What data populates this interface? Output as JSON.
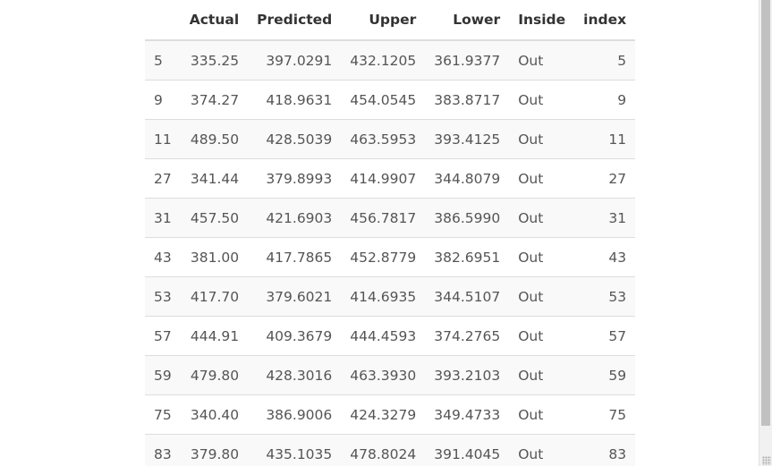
{
  "table": {
    "columns": [
      "",
      "Actual",
      "Predicted",
      "Upper",
      "Lower",
      "Inside",
      "index"
    ],
    "rows": [
      [
        "5",
        "335.25",
        "397.0291",
        "432.1205",
        "361.9377",
        "Out",
        "5"
      ],
      [
        "9",
        "374.27",
        "418.9631",
        "454.0545",
        "383.8717",
        "Out",
        "9"
      ],
      [
        "11",
        "489.50",
        "428.5039",
        "463.5953",
        "393.4125",
        "Out",
        "11"
      ],
      [
        "27",
        "341.44",
        "379.8993",
        "414.9907",
        "344.8079",
        "Out",
        "27"
      ],
      [
        "31",
        "457.50",
        "421.6903",
        "456.7817",
        "386.5990",
        "Out",
        "31"
      ],
      [
        "43",
        "381.00",
        "417.7865",
        "452.8779",
        "382.6951",
        "Out",
        "43"
      ],
      [
        "53",
        "417.70",
        "379.6021",
        "414.6935",
        "344.5107",
        "Out",
        "53"
      ],
      [
        "57",
        "444.91",
        "409.3679",
        "444.4593",
        "374.2765",
        "Out",
        "57"
      ],
      [
        "59",
        "479.80",
        "428.3016",
        "463.3930",
        "393.2103",
        "Out",
        "59"
      ],
      [
        "75",
        "340.40",
        "386.9006",
        "424.3279",
        "349.4733",
        "Out",
        "75"
      ],
      [
        "83",
        "379.80",
        "435.1035",
        "478.8024",
        "391.4045",
        "Out",
        "83"
      ]
    ]
  }
}
